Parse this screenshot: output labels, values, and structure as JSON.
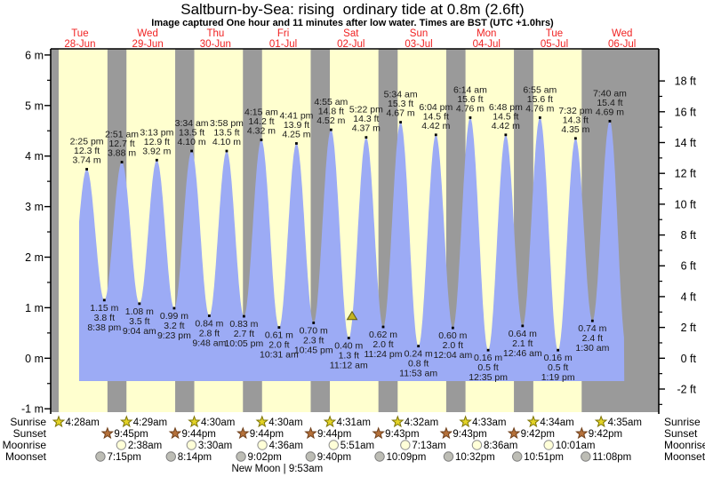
{
  "chart_data": {
    "type": "area",
    "title": "Saltburn-by-Sea: rising  ordinary tide at 0.8m (2.6ft)",
    "subtitle": "Image captured One hour and 11 minutes after low water. Times are BST (UTC +1.0hrs)",
    "x_days": [
      {
        "weekday": "Tue",
        "date": "28-Jun"
      },
      {
        "weekday": "Wed",
        "date": "29-Jun"
      },
      {
        "weekday": "Thu",
        "date": "30-Jun"
      },
      {
        "weekday": "Fri",
        "date": "01-Jul"
      },
      {
        "weekday": "Sat",
        "date": "02-Jul"
      },
      {
        "weekday": "Sun",
        "date": "03-Jul"
      },
      {
        "weekday": "Mon",
        "date": "04-Jul"
      },
      {
        "weekday": "Tue",
        "date": "05-Jul"
      },
      {
        "weekday": "Wed",
        "date": "06-Jul"
      }
    ],
    "y_left": {
      "unit": "m",
      "min": -1,
      "max": 6,
      "ticks": [
        6,
        5,
        4,
        3,
        2,
        1,
        0,
        -1
      ]
    },
    "y_right": {
      "unit": "ft",
      "min": -2,
      "max": 18,
      "ticks": [
        18,
        16,
        14,
        12,
        10,
        8,
        6,
        4,
        2,
        0,
        -2
      ]
    },
    "high_tides": [
      {
        "day": 0,
        "time": "2:25 pm",
        "hour": 14.42,
        "height_m": 3.74,
        "m_label": "3.74 m",
        "ft_label": "12.3 ft"
      },
      {
        "day": 1,
        "time": "2:51 am",
        "hour": 2.85,
        "height_m": 3.88,
        "m_label": "3.88 m",
        "ft_label": "12.7 ft"
      },
      {
        "day": 1,
        "time": "3:13 pm",
        "hour": 15.22,
        "height_m": 3.92,
        "m_label": "3.92 m",
        "ft_label": "12.9 ft"
      },
      {
        "day": 2,
        "time": "3:34 am",
        "hour": 3.57,
        "height_m": 4.1,
        "m_label": "4.10 m",
        "ft_label": "13.5 ft"
      },
      {
        "day": 2,
        "time": "3:58 pm",
        "hour": 15.97,
        "height_m": 4.1,
        "m_label": "4.10 m",
        "ft_label": "13.5 ft"
      },
      {
        "day": 3,
        "time": "4:15 am",
        "hour": 4.25,
        "height_m": 4.32,
        "m_label": "4.32 m",
        "ft_label": "14.2 ft"
      },
      {
        "day": 3,
        "time": "4:41 pm",
        "hour": 16.68,
        "height_m": 4.25,
        "m_label": "4.25 m",
        "ft_label": "13.9 ft"
      },
      {
        "day": 4,
        "time": "4:55 am",
        "hour": 4.92,
        "height_m": 4.52,
        "m_label": "4.52 m",
        "ft_label": "14.8 ft"
      },
      {
        "day": 4,
        "time": "5:22 pm",
        "hour": 17.37,
        "height_m": 4.37,
        "m_label": "4.37 m",
        "ft_label": "14.3 ft"
      },
      {
        "day": 5,
        "time": "5:34 am",
        "hour": 5.57,
        "height_m": 4.67,
        "m_label": "4.67 m",
        "ft_label": "15.3 ft"
      },
      {
        "day": 5,
        "time": "6:04 pm",
        "hour": 18.07,
        "height_m": 4.42,
        "m_label": "4.42 m",
        "ft_label": "14.5 ft"
      },
      {
        "day": 6,
        "time": "6:14 am",
        "hour": 6.23,
        "height_m": 4.76,
        "m_label": "4.76 m",
        "ft_label": "15.6 ft"
      },
      {
        "day": 6,
        "time": "6:48 pm",
        "hour": 18.8,
        "height_m": 4.42,
        "m_label": "4.42 m",
        "ft_label": "14.5 ft"
      },
      {
        "day": 7,
        "time": "6:55 am",
        "hour": 6.92,
        "height_m": 4.76,
        "m_label": "4.76 m",
        "ft_label": "15.6 ft"
      },
      {
        "day": 7,
        "time": "7:32 pm",
        "hour": 19.53,
        "height_m": 4.35,
        "m_label": "4.35 m",
        "ft_label": "14.3 ft"
      },
      {
        "day": 8,
        "time": "7:40 am",
        "hour": 7.67,
        "height_m": 4.69,
        "m_label": "4.69 m",
        "ft_label": "15.4 ft"
      }
    ],
    "low_tides": [
      {
        "day": 0,
        "time": "8:38 pm",
        "hour": 20.63,
        "height_m": 1.15,
        "m_label": "1.15 m",
        "ft_label": "3.8 ft"
      },
      {
        "day": 1,
        "time": "9:04 am",
        "hour": 9.07,
        "height_m": 1.08,
        "m_label": "1.08 m",
        "ft_label": "3.5 ft"
      },
      {
        "day": 1,
        "time": "9:23 pm",
        "hour": 21.38,
        "height_m": 0.99,
        "m_label": "0.99 m",
        "ft_label": "3.2 ft"
      },
      {
        "day": 2,
        "time": "9:48 am",
        "hour": 9.8,
        "height_m": 0.84,
        "m_label": "0.84 m",
        "ft_label": "2.8 ft"
      },
      {
        "day": 2,
        "time": "10:05 pm",
        "hour": 22.08,
        "height_m": 0.83,
        "m_label": "0.83 m",
        "ft_label": "2.7 ft"
      },
      {
        "day": 3,
        "time": "10:31 am",
        "hour": 10.52,
        "height_m": 0.61,
        "m_label": "0.61 m",
        "ft_label": "2.0 ft"
      },
      {
        "day": 3,
        "time": "10:45 pm",
        "hour": 22.75,
        "height_m": 0.7,
        "m_label": "0.70 m",
        "ft_label": "2.3 ft"
      },
      {
        "day": 4,
        "time": "11:12 am",
        "hour": 11.2,
        "height_m": 0.4,
        "m_label": "0.40 m",
        "ft_label": "1.3 ft"
      },
      {
        "day": 4,
        "time": "11:24 pm",
        "hour": 23.4,
        "height_m": 0.62,
        "m_label": "0.62 m",
        "ft_label": "2.0 ft"
      },
      {
        "day": 5,
        "time": "11:53 am",
        "hour": 11.88,
        "height_m": 0.24,
        "m_label": "0.24 m",
        "ft_label": "0.8 ft"
      },
      {
        "day": 6,
        "time": "12:04 am",
        "hour": 0.07,
        "height_m": 0.6,
        "m_label": "0.60 m",
        "ft_label": "2.0 ft"
      },
      {
        "day": 6,
        "time": "12:35 pm",
        "hour": 12.58,
        "height_m": 0.16,
        "m_label": "0.16 m",
        "ft_label": "0.5 ft"
      },
      {
        "day": 7,
        "time": "12:46 am",
        "hour": 0.77,
        "height_m": 0.64,
        "m_label": "0.64 m",
        "ft_label": "2.1 ft"
      },
      {
        "day": 7,
        "time": "1:19 pm",
        "hour": 13.32,
        "height_m": 0.16,
        "m_label": "0.16 m",
        "ft_label": "0.5 ft"
      },
      {
        "day": 8,
        "time": "1:30 am",
        "hour": 1.5,
        "height_m": 0.74,
        "m_label": "0.74 m",
        "ft_label": "2.4 ft"
      }
    ],
    "current_marker": {
      "hour_global": 108.38,
      "height_m": 0.8
    },
    "curve": {
      "start_hour": 11.7,
      "end_hour": 204.8,
      "pre_low": {
        "hour_global": 8.2,
        "value_m": 1.15
      },
      "post_low": {
        "hour_global": 205.4,
        "value_m": 0.25
      }
    },
    "colors": {
      "day_band": "#ffffcf",
      "night_band": "#9a9a9a",
      "tide_fill": "#9cabf5",
      "day_label": "#f02222",
      "marker_fill": "#c4b422",
      "marker_stroke": "#5f5a10",
      "sunrise_star": "#e3d326",
      "sunset_star": "#b5713a",
      "moonrise_circle": "#ffffd8",
      "moonset_circle": "#bdbdb5"
    }
  },
  "astro": {
    "row_labels": [
      "Sunrise",
      "Sunset",
      "Moonrise",
      "Moonset"
    ],
    "sunrise": [
      {
        "day": 0,
        "time": "4:28am",
        "hour": 4.47
      },
      {
        "day": 1,
        "time": "4:29am",
        "hour": 4.48
      },
      {
        "day": 2,
        "time": "4:30am",
        "hour": 4.5
      },
      {
        "day": 3,
        "time": "4:30am",
        "hour": 4.5
      },
      {
        "day": 4,
        "time": "4:31am",
        "hour": 4.52
      },
      {
        "day": 5,
        "time": "4:32am",
        "hour": 4.53
      },
      {
        "day": 6,
        "time": "4:33am",
        "hour": 4.55
      },
      {
        "day": 7,
        "time": "4:34am",
        "hour": 4.57
      },
      {
        "day": 8,
        "time": "4:35am",
        "hour": 4.58
      }
    ],
    "sunset": [
      {
        "day": 0,
        "time": "9:45pm",
        "hour": 21.75
      },
      {
        "day": 1,
        "time": "9:44pm",
        "hour": 21.73
      },
      {
        "day": 2,
        "time": "9:44pm",
        "hour": 21.73
      },
      {
        "day": 3,
        "time": "9:44pm",
        "hour": 21.73
      },
      {
        "day": 4,
        "time": "9:43pm",
        "hour": 21.72
      },
      {
        "day": 5,
        "time": "9:43pm",
        "hour": 21.72
      },
      {
        "day": 6,
        "time": "9:42pm",
        "hour": 21.7
      },
      {
        "day": 7,
        "time": "9:42pm",
        "hour": 21.7
      }
    ],
    "moonrise": [
      {
        "day": 1,
        "time": "2:38am",
        "hour": 2.63
      },
      {
        "day": 2,
        "time": "3:30am",
        "hour": 3.5
      },
      {
        "day": 3,
        "time": "4:36am",
        "hour": 4.6
      },
      {
        "day": 4,
        "time": "5:51am",
        "hour": 5.85
      },
      {
        "day": 5,
        "time": "7:13am",
        "hour": 7.22
      },
      {
        "day": 6,
        "time": "8:36am",
        "hour": 8.6
      },
      {
        "day": 7,
        "time": "10:01am",
        "hour": 10.02
      }
    ],
    "moonset": [
      {
        "day": 0,
        "time": "7:15pm",
        "hour": 19.25
      },
      {
        "day": 1,
        "time": "8:14pm",
        "hour": 20.23
      },
      {
        "day": 2,
        "time": "9:02pm",
        "hour": 21.03
      },
      {
        "day": 3,
        "time": "9:40pm",
        "hour": 21.67
      },
      {
        "day": 4,
        "time": "10:09pm",
        "hour": 22.15
      },
      {
        "day": 5,
        "time": "10:32pm",
        "hour": 22.53
      },
      {
        "day": 6,
        "time": "10:51pm",
        "hour": 22.85
      },
      {
        "day": 7,
        "time": "11:08pm",
        "hour": 23.13
      }
    ],
    "new_moon": {
      "label": "New Moon | 9:53am",
      "day": 3,
      "hour": 9.88
    }
  }
}
